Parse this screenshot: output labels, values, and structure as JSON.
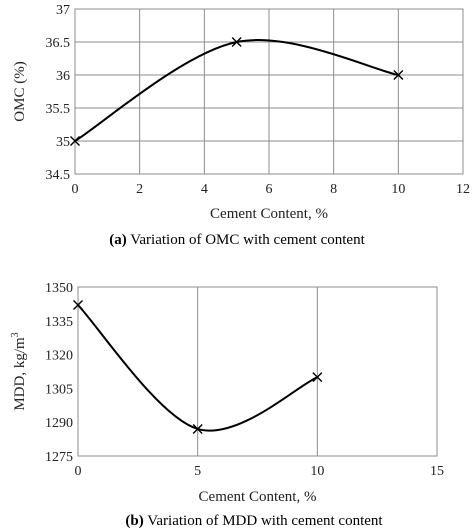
{
  "chart_data": [
    {
      "type": "line",
      "caption_label": "(a)",
      "caption_text": " Variation of OMC with cement content",
      "xlabel": "Cement Content, %",
      "ylabel": "OMC  (%)",
      "xlim": [
        0,
        12
      ],
      "ylim": [
        34.5,
        37
      ],
      "x_ticks": [
        0,
        2,
        4,
        6,
        8,
        10,
        12
      ],
      "y_ticks": [
        34.5,
        35,
        35.5,
        36,
        36.5,
        37
      ],
      "x_tick_labels": [
        "0",
        "2",
        "4",
        "6",
        "8",
        "10",
        "12"
      ],
      "y_tick_labels": [
        "34.5",
        "35",
        "35.5",
        "36",
        "36.5",
        "37"
      ],
      "grid": "both",
      "marker": "x",
      "smooth": true,
      "series": [
        {
          "x": [
            0,
            5,
            10
          ],
          "y": [
            35.0,
            36.5,
            36.0
          ]
        }
      ]
    },
    {
      "type": "line",
      "caption_label": "(b)",
      "caption_text": " Variation of MDD with cement content",
      "xlabel": "Cement Content, %",
      "ylabel": "MDD, kg/m",
      "ylabel_sup": "3",
      "xlim": [
        0,
        15
      ],
      "ylim": [
        1275,
        1350
      ],
      "x_ticks": [
        0,
        5,
        10,
        15
      ],
      "y_ticks": [
        1275,
        1290,
        1305,
        1320,
        1335,
        1350
      ],
      "x_tick_labels": [
        "0",
        "5",
        "10",
        "15"
      ],
      "y_tick_labels": [
        "1275",
        "1290",
        "1305",
        "1320",
        "1335",
        "1350"
      ],
      "grid": "vertical",
      "marker": "x",
      "smooth": true,
      "series": [
        {
          "x": [
            0,
            5,
            10
          ],
          "y": [
            1342,
            1287,
            1310
          ]
        }
      ]
    }
  ]
}
